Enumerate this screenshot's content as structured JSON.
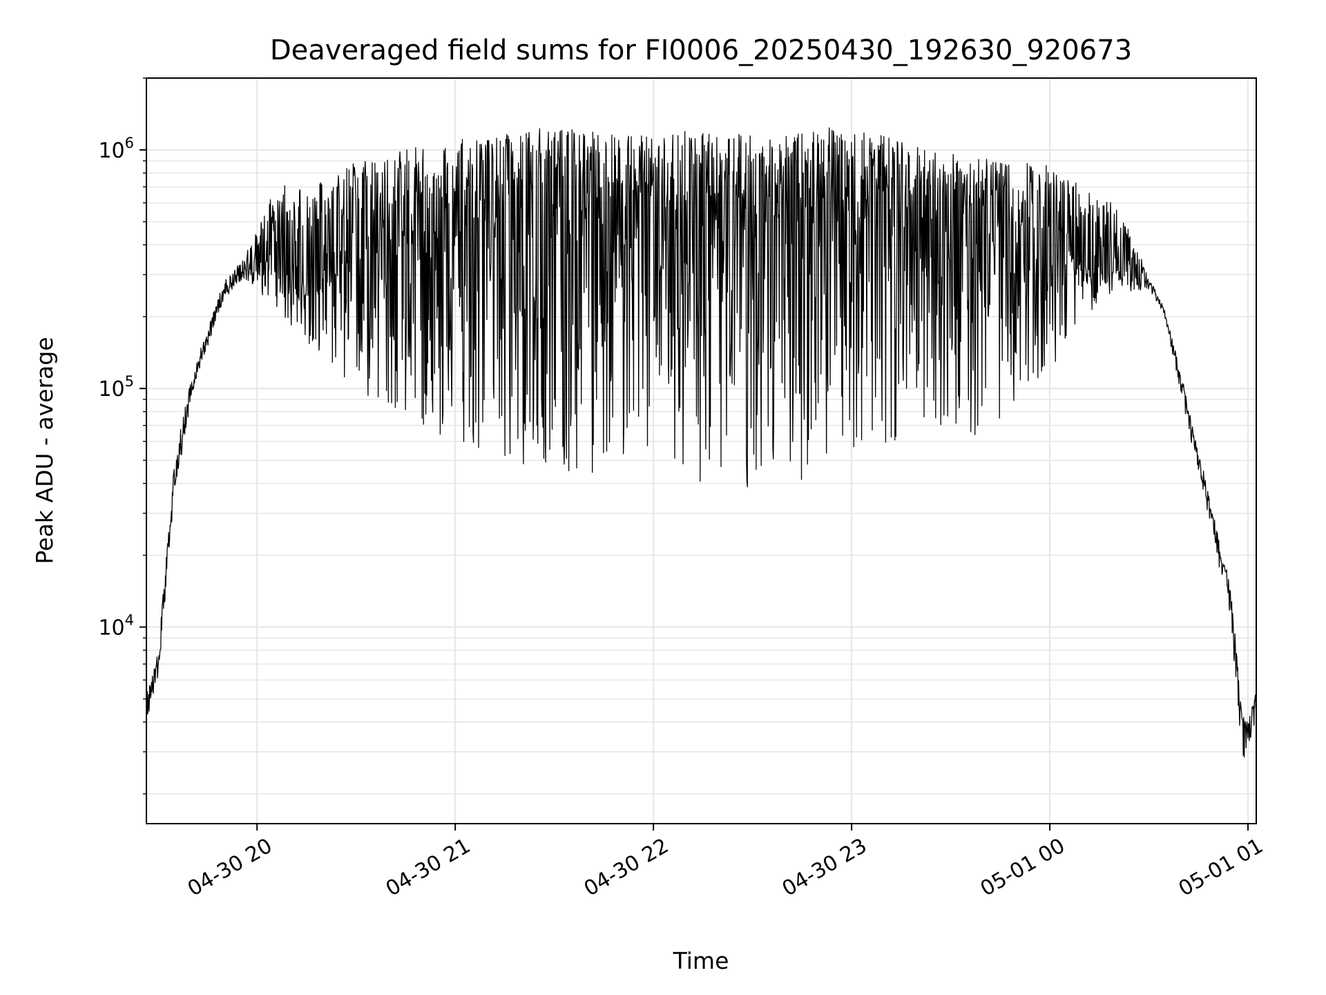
{
  "chart_data": {
    "type": "line",
    "title": "Deaveraged field sums for FI0006_20250430_192630_920673",
    "xlabel": "Time",
    "ylabel": "Peak ADU - average",
    "yscale": "log",
    "grid": true,
    "line_color": "#000000",
    "grid_color": "#e6e6e6",
    "xlim": [
      "2025-04-30 19:26:30",
      "2025-05-01 01:02:30"
    ],
    "ylim": [
      1500,
      2000000
    ],
    "x_ticks": [
      {
        "label": "04-30 20",
        "time": "2025-04-30 20:00"
      },
      {
        "label": "04-30 21",
        "time": "2025-04-30 21:00"
      },
      {
        "label": "04-30 22",
        "time": "2025-04-30 22:00"
      },
      {
        "label": "04-30 23",
        "time": "2025-04-30 23:00"
      },
      {
        "label": "05-01 00",
        "time": "2025-05-01 00:00"
      },
      {
        "label": "05-01 01",
        "time": "2025-05-01 01:00"
      }
    ],
    "y_ticks": [
      {
        "base": "10",
        "exp": "4",
        "value": 10000
      },
      {
        "base": "10",
        "exp": "5",
        "value": 100000
      },
      {
        "base": "10",
        "exp": "6",
        "value": 1000000
      }
    ],
    "envelope": {
      "time": [
        "2025-04-30 19:26:30",
        "2025-04-30 19:30",
        "2025-04-30 19:35",
        "2025-04-30 19:40",
        "2025-04-30 19:45",
        "2025-04-30 19:50",
        "2025-04-30 19:55",
        "2025-04-30 20:00",
        "2025-04-30 20:05",
        "2025-04-30 20:15",
        "2025-04-30 20:30",
        "2025-04-30 20:45",
        "2025-04-30 21:00",
        "2025-04-30 21:15",
        "2025-04-30 21:30",
        "2025-04-30 21:45",
        "2025-04-30 22:00",
        "2025-04-30 22:15",
        "2025-04-30 22:30",
        "2025-04-30 22:45",
        "2025-04-30 23:00",
        "2025-04-30 23:15",
        "2025-04-30 23:30",
        "2025-04-30 23:45",
        "2025-05-01 00:00",
        "2025-05-01 00:10",
        "2025-05-01 00:20",
        "2025-05-01 00:30",
        "2025-05-01 00:35",
        "2025-05-01 00:40",
        "2025-05-01 00:45",
        "2025-05-01 00:50",
        "2025-05-01 00:55",
        "2025-05-01 00:58",
        "2025-05-01 01:00",
        "2025-05-01 01:02:30"
      ],
      "base": [
        4500,
        7000,
        40000,
        100000,
        160000,
        250000,
        300000,
        350000,
        330000,
        320000,
        350000,
        450000,
        500000,
        550000,
        600000,
        550000,
        450000,
        500000,
        550000,
        550000,
        550000,
        500000,
        450000,
        400000,
        350000,
        330000,
        320000,
        280000,
        200000,
        100000,
        50000,
        25000,
        12000,
        4000,
        3500,
        5000
      ],
      "upper": [
        5200,
        8000,
        50000,
        110000,
        180000,
        280000,
        330000,
        480000,
        700000,
        700000,
        900000,
        1000000,
        1100000,
        1150000,
        1250000,
        1200000,
        1150000,
        1200000,
        1200000,
        1200000,
        1250000,
        1100000,
        1000000,
        900000,
        850000,
        700000,
        600000,
        300000,
        210000,
        110000,
        55000,
        28000,
        14000,
        4500,
        4000,
        5500
      ],
      "lower": [
        4000,
        6000,
        35000,
        90000,
        150000,
        240000,
        280000,
        250000,
        220000,
        150000,
        100000,
        70000,
        60000,
        50000,
        40000,
        45000,
        60000,
        40000,
        38000,
        40000,
        45000,
        55000,
        60000,
        70000,
        120000,
        200000,
        250000,
        260000,
        190000,
        90000,
        45000,
        22000,
        10000,
        3000,
        2500,
        4500
      ]
    }
  }
}
